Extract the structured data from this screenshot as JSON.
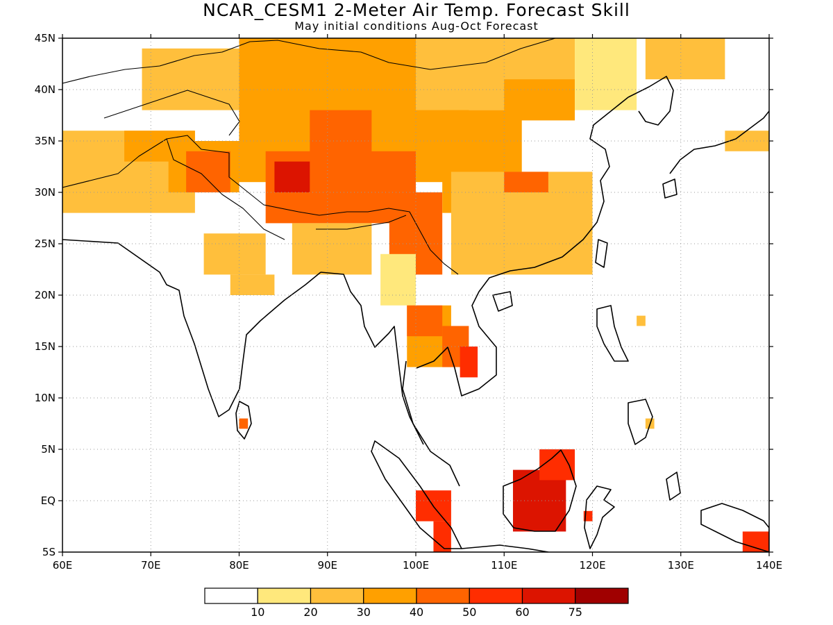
{
  "title": "NCAR_CESM1 2-Meter Air Temp. Forecast Skill",
  "subtitle": "May initial conditions  Aug-Oct Forecast",
  "axes": {
    "lon_labels": [
      "60E",
      "70E",
      "80E",
      "90E",
      "100E",
      "110E",
      "120E",
      "130E",
      "140E"
    ],
    "lat_labels": [
      "45N",
      "40N",
      "35N",
      "30N",
      "25N",
      "20N",
      "15N",
      "10N",
      "5N",
      "EQ",
      "5S"
    ],
    "lon_range": [
      60,
      140
    ],
    "lat_range": [
      -5,
      45
    ],
    "grid": "dotted"
  },
  "colorbar": {
    "labels": [
      "10",
      "20",
      "30",
      "40",
      "50",
      "60",
      "75"
    ],
    "colors": [
      "#ffffff",
      "#ffe87c",
      "#ffbf3c",
      "#ffa000",
      "#ff6400",
      "#ff2d00",
      "#dc1400",
      "#a00000"
    ]
  },
  "chart_data": {
    "type": "heatmap",
    "title": "NCAR_CESM1 2-Meter Air Temp. Forecast Skill",
    "subtitle": "May initial conditions  Aug-Oct Forecast",
    "variable": "2-Meter Air Temp. Forecast Skill",
    "xlim": [
      60,
      140
    ],
    "ylim": [
      -5,
      45
    ],
    "levels": [
      10,
      20,
      30,
      40,
      50,
      60,
      75
    ],
    "regions": [
      {
        "lon": [
          60,
          75
        ],
        "lat": [
          28,
          36
        ],
        "level": 2
      },
      {
        "lon": [
          67,
          75
        ],
        "lat": [
          33,
          36
        ],
        "level": 3
      },
      {
        "lon": [
          72,
          80
        ],
        "lat": [
          30,
          35
        ],
        "level": 3
      },
      {
        "lon": [
          74,
          79
        ],
        "lat": [
          30,
          34
        ],
        "level": 4
      },
      {
        "lon": [
          69,
          88
        ],
        "lat": [
          38,
          44
        ],
        "level": 2
      },
      {
        "lon": [
          80,
          106
        ],
        "lat": [
          31,
          45
        ],
        "level": 3
      },
      {
        "lon": [
          83,
          100
        ],
        "lat": [
          27,
          34
        ],
        "level": 4
      },
      {
        "lon": [
          84,
          88
        ],
        "lat": [
          30,
          33
        ],
        "level": 6
      },
      {
        "lon": [
          88,
          95
        ],
        "lat": [
          33,
          38
        ],
        "level": 4
      },
      {
        "lon": [
          97,
          103
        ],
        "lat": [
          22,
          30
        ],
        "level": 4
      },
      {
        "lon": [
          100,
          118
        ],
        "lat": [
          38,
          45
        ],
        "level": 2
      },
      {
        "lon": [
          103,
          112
        ],
        "lat": [
          28,
          38
        ],
        "level": 3
      },
      {
        "lon": [
          104,
          120
        ],
        "lat": [
          22,
          32
        ],
        "level": 2
      },
      {
        "lon": [
          110,
          118
        ],
        "lat": [
          37,
          41
        ],
        "level": 3
      },
      {
        "lon": [
          110,
          115
        ],
        "lat": [
          30,
          32
        ],
        "level": 4
      },
      {
        "lon": [
          118,
          125
        ],
        "lat": [
          38,
          45
        ],
        "level": 1
      },
      {
        "lon": [
          126,
          135
        ],
        "lat": [
          41,
          45
        ],
        "level": 2
      },
      {
        "lon": [
          135,
          140
        ],
        "lat": [
          34,
          36
        ],
        "level": 2
      },
      {
        "lon": [
          76,
          83
        ],
        "lat": [
          22,
          26
        ],
        "level": 2
      },
      {
        "lon": [
          86,
          95
        ],
        "lat": [
          22,
          27
        ],
        "level": 2
      },
      {
        "lon": [
          79,
          84
        ],
        "lat": [
          20,
          22
        ],
        "level": 2
      },
      {
        "lon": [
          96,
          100
        ],
        "lat": [
          19,
          24
        ],
        "level": 1
      },
      {
        "lon": [
          99,
          104
        ],
        "lat": [
          13,
          19
        ],
        "level": 3
      },
      {
        "lon": [
          99,
          103
        ],
        "lat": [
          16,
          19
        ],
        "level": 4
      },
      {
        "lon": [
          103,
          106
        ],
        "lat": [
          13,
          17
        ],
        "level": 4
      },
      {
        "lon": [
          105,
          107
        ],
        "lat": [
          12,
          15
        ],
        "level": 5
      },
      {
        "lon": [
          80,
          81
        ],
        "lat": [
          7,
          8
        ],
        "level": 4
      },
      {
        "lon": [
          100,
          104
        ],
        "lat": [
          -2,
          1
        ],
        "level": 5
      },
      {
        "lon": [
          102,
          104
        ],
        "lat": [
          -5,
          -2
        ],
        "level": 5
      },
      {
        "lon": [
          111,
          117
        ],
        "lat": [
          -3,
          3
        ],
        "level": 6
      },
      {
        "lon": [
          114,
          118
        ],
        "lat": [
          2,
          5
        ],
        "level": 5
      },
      {
        "lon": [
          119,
          120
        ],
        "lat": [
          -2,
          -1
        ],
        "level": 5
      },
      {
        "lon": [
          137,
          140
        ],
        "lat": [
          -5,
          -3
        ],
        "level": 5
      },
      {
        "lon": [
          125,
          126
        ],
        "lat": [
          17,
          18
        ],
        "level": 2
      },
      {
        "lon": [
          126,
          127
        ],
        "lat": [
          7,
          8
        ],
        "level": 2
      }
    ]
  }
}
